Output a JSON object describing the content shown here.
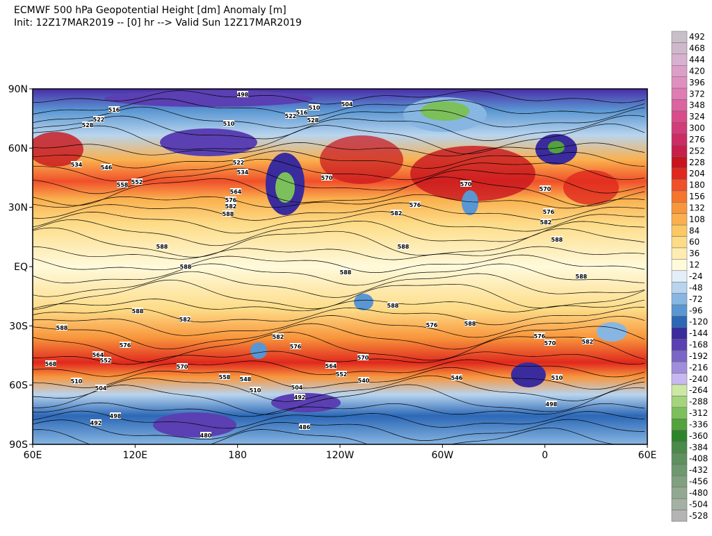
{
  "header": {
    "title": "ECMWF 500 hPa Geopotential Height [dm] Anomaly [m]",
    "subtitle": "Init: 12Z17MAR2019 -- [0] hr --> Valid Sun 12Z17MAR2019"
  },
  "map": {
    "lat_labels": [
      "90N",
      "60N",
      "30N",
      "EQ",
      "30S",
      "60S",
      "90S"
    ],
    "lon_labels": [
      "60E",
      "120E",
      "180",
      "120W",
      "60W",
      "0",
      "60E"
    ],
    "contour_labels": [
      "498",
      "504",
      "510",
      "516",
      "522",
      "528",
      "510",
      "528",
      "516",
      "522",
      "534",
      "546",
      "558",
      "552",
      "522",
      "534",
      "564",
      "576",
      "582",
      "588",
      "570",
      "570",
      "576",
      "582",
      "588",
      "588",
      "588",
      "588",
      "588",
      "588",
      "588",
      "582",
      "576",
      "564",
      "552",
      "568",
      "570",
      "558",
      "548",
      "510",
      "504",
      "492",
      "510",
      "504",
      "492",
      "498",
      "480",
      "486",
      "582",
      "576",
      "570",
      "564",
      "552",
      "540",
      "546",
      "588",
      "576",
      "588",
      "576",
      "570",
      "582",
      "510",
      "498",
      "570",
      "576",
      "582",
      "588"
    ]
  },
  "colorbar": {
    "levels": [
      {
        "label": "492",
        "color": "#c8c0c8"
      },
      {
        "label": "468",
        "color": "#d0b8cc"
      },
      {
        "label": "444",
        "color": "#d8b0d0"
      },
      {
        "label": "420",
        "color": "#dca0c8"
      },
      {
        "label": "396",
        "color": "#e090c0"
      },
      {
        "label": "372",
        "color": "#e07cb4"
      },
      {
        "label": "348",
        "color": "#dc64a0"
      },
      {
        "label": "324",
        "color": "#d84c8c"
      },
      {
        "label": "300",
        "color": "#d23c78"
      },
      {
        "label": "276",
        "color": "#cc2c64"
      },
      {
        "label": "252",
        "color": "#c81e4c"
      },
      {
        "label": "228",
        "color": "#c8141e"
      },
      {
        "label": "204",
        "color": "#e0281e"
      },
      {
        "label": "180",
        "color": "#f0502a"
      },
      {
        "label": "156",
        "color": "#f5742e"
      },
      {
        "label": "132",
        "color": "#f8963c"
      },
      {
        "label": "108",
        "color": "#fab04e"
      },
      {
        "label": "84",
        "color": "#fcc864"
      },
      {
        "label": "60",
        "color": "#fddc88"
      },
      {
        "label": "36",
        "color": "#feecb0"
      },
      {
        "label": "12",
        "color": "#fffadc"
      },
      {
        "label": "-24",
        "color": "#e4eef8"
      },
      {
        "label": "-48",
        "color": "#b8d4ee"
      },
      {
        "label": "-72",
        "color": "#88b6e2"
      },
      {
        "label": "-96",
        "color": "#5a96d2"
      },
      {
        "label": "-120",
        "color": "#2c68b6"
      },
      {
        "label": "-144",
        "color": "#3a2c9c"
      },
      {
        "label": "-168",
        "color": "#5a40b2"
      },
      {
        "label": "-192",
        "color": "#7a66c6"
      },
      {
        "label": "-216",
        "color": "#a08edc"
      },
      {
        "label": "-240",
        "color": "#c8b8f0"
      },
      {
        "label": "-264",
        "color": "#cce8a4"
      },
      {
        "label": "-288",
        "color": "#a4d47c"
      },
      {
        "label": "-312",
        "color": "#7cc05c"
      },
      {
        "label": "-336",
        "color": "#52a23e"
      },
      {
        "label": "-360",
        "color": "#2e842a"
      },
      {
        "label": "-384",
        "color": "#4a8a4a"
      },
      {
        "label": "-408",
        "color": "#5e9060"
      },
      {
        "label": "-432",
        "color": "#6e9870"
      },
      {
        "label": "-456",
        "color": "#80a080"
      },
      {
        "label": "-480",
        "color": "#92a892"
      },
      {
        "label": "-504",
        "color": "#a4b0a4"
      },
      {
        "label": "-528",
        "color": "#b4b4b4"
      }
    ]
  }
}
